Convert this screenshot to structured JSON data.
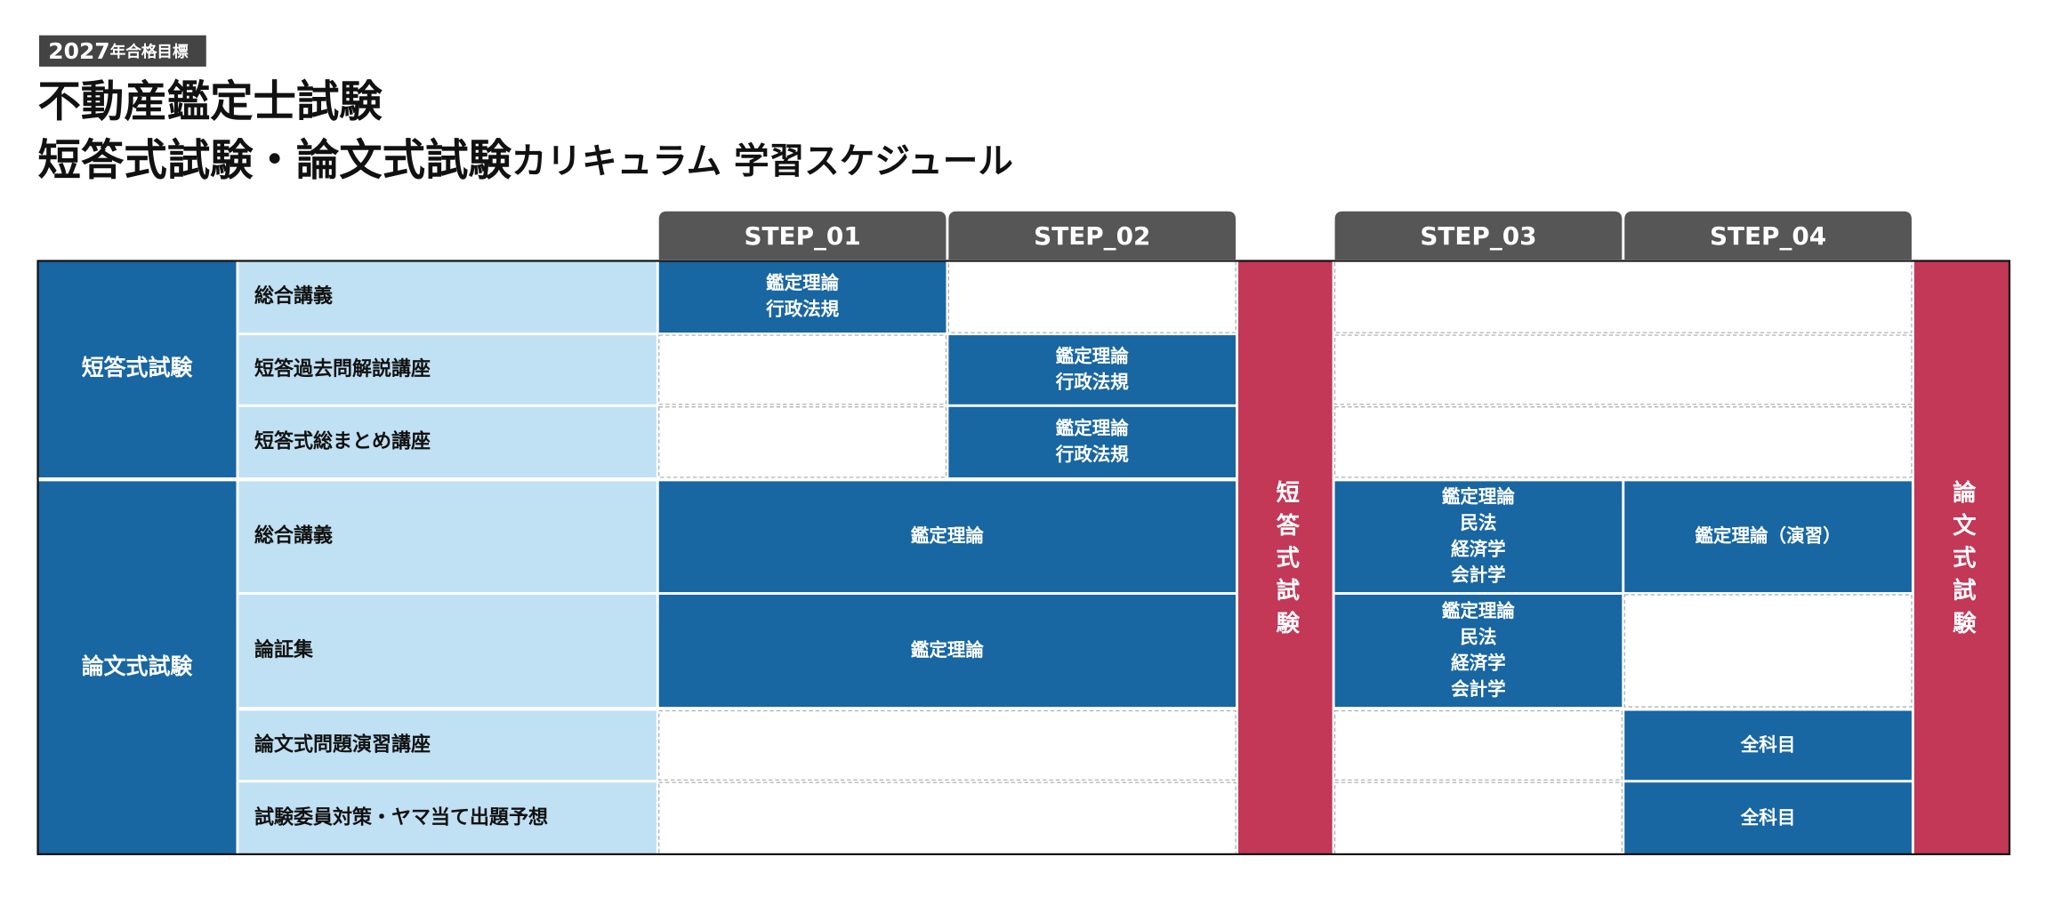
{
  "header": {
    "badge_year": "2027",
    "badge_suffix": "年合格目標",
    "title_line1": "不動産鑑定士試験",
    "title_line2_main": "短答式試験・論文式試験",
    "title_line2_sub": "カリキュラム 学習スケジュール"
  },
  "steps": [
    "STEP_01",
    "STEP_02",
    "STEP_03",
    "STEP_04"
  ],
  "exam_columns": [
    "短答式試験",
    "論文式試験"
  ],
  "groups": [
    {
      "name": "短答式試験",
      "rows": [
        {
          "course": "総合講義",
          "cells": [
            [
              "鑑定理論",
              "行政法規"
            ],
            null,
            null
          ]
        },
        {
          "course": "短答過去問解説講座",
          "cells": [
            null,
            [
              "鑑定理論",
              "行政法規"
            ],
            null
          ]
        },
        {
          "course": "短答式総まとめ講座",
          "cells": [
            null,
            [
              "鑑定理論",
              "行政法規"
            ],
            null
          ]
        }
      ]
    },
    {
      "name": "論文式試験",
      "rows": [
        {
          "course": "総合講義",
          "cells": [
            [
              "鑑定理論"
            ],
            [
              "鑑定理論",
              "民法",
              "経済学",
              "会計学"
            ],
            [
              "鑑定理論（演習）"
            ]
          ]
        },
        {
          "course": "論証集",
          "cells": [
            [
              "鑑定理論"
            ],
            [
              "鑑定理論",
              "民法",
              "経済学",
              "会計学"
            ],
            null
          ]
        },
        {
          "course": "論文式問題演習講座",
          "cells": [
            null,
            null,
            [
              "全科目"
            ]
          ]
        },
        {
          "course": "試験委員対策・ヤマ当て出題予想",
          "cells": [
            null,
            null,
            [
              "全科目"
            ]
          ]
        }
      ]
    }
  ]
}
